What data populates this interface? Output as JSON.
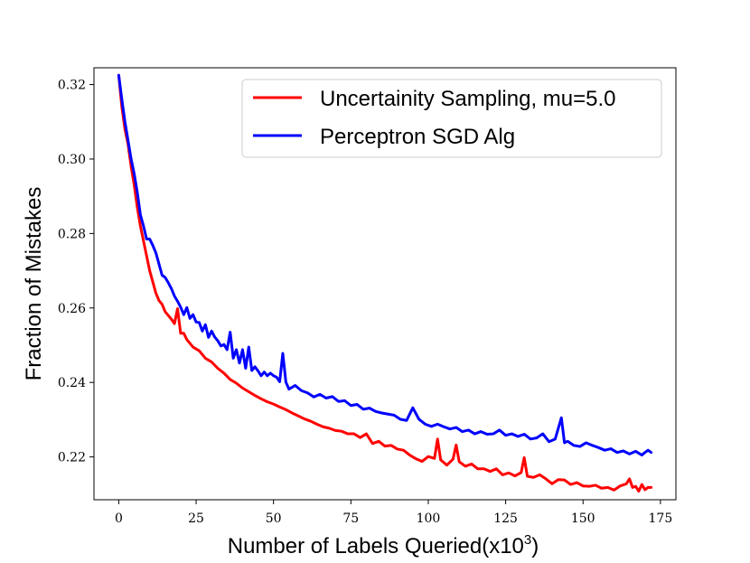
{
  "chart_data": {
    "type": "line",
    "title": "",
    "xlabel_main": "Number of Labels Queried(x10",
    "xlabel_exp": "3",
    "xlabel_close": ")",
    "ylabel": "Fraction of Mistakes",
    "xlim": [
      -8,
      180
    ],
    "ylim": [
      0.2085,
      0.3245
    ],
    "x_ticks": [
      0,
      25,
      50,
      75,
      100,
      125,
      150,
      175
    ],
    "x_tick_labels": [
      "0",
      "25",
      "50",
      "75",
      "100",
      "125",
      "150",
      "175"
    ],
    "y_ticks": [
      0.22,
      0.24,
      0.26,
      0.28,
      0.3,
      0.32
    ],
    "y_tick_labels": [
      "0.22",
      "0.24",
      "0.26",
      "0.28",
      "0.30",
      "0.32"
    ],
    "grid": false,
    "legend_position": "top-right",
    "series": [
      {
        "name": "Uncertainity Sampling, mu=5.0",
        "color": "#ff0000",
        "x": [
          0,
          1,
          2,
          3,
          4,
          5,
          6,
          7,
          8,
          9,
          10,
          11,
          12,
          13,
          14,
          15,
          16,
          17,
          18,
          19,
          20,
          21,
          22,
          24,
          26,
          28,
          30,
          32,
          34,
          36,
          38,
          40,
          42,
          44,
          46,
          48,
          50,
          52,
          54,
          56,
          58,
          60,
          62,
          64,
          66,
          68,
          70,
          72,
          74,
          76,
          78,
          80,
          82,
          84,
          86,
          88,
          90,
          92,
          94,
          96,
          98,
          100,
          102,
          103,
          104,
          106,
          108,
          109,
          110,
          112,
          114,
          116,
          118,
          120,
          122,
          124,
          126,
          128,
          130,
          131,
          132,
          134,
          136,
          138,
          140,
          142,
          144,
          146,
          148,
          150,
          152,
          154,
          156,
          158,
          160,
          162,
          164,
          165,
          166,
          167,
          168,
          169,
          170,
          171,
          172
        ],
        "y": [
          0.3225,
          0.314,
          0.308,
          0.304,
          0.298,
          0.293,
          0.287,
          0.282,
          0.278,
          0.274,
          0.27,
          0.267,
          0.264,
          0.262,
          0.261,
          0.259,
          0.258,
          0.257,
          0.2558,
          0.2598,
          0.2532,
          0.2532,
          0.2515,
          0.2495,
          0.2485,
          0.2465,
          0.2455,
          0.2438,
          0.2425,
          0.2408,
          0.2398,
          0.2385,
          0.2375,
          0.2365,
          0.2356,
          0.2348,
          0.2342,
          0.2334,
          0.2327,
          0.2318,
          0.231,
          0.2302,
          0.2296,
          0.2288,
          0.2281,
          0.2277,
          0.2271,
          0.2269,
          0.2262,
          0.2262,
          0.2252,
          0.2262,
          0.2236,
          0.2242,
          0.2229,
          0.2231,
          0.2221,
          0.2218,
          0.2205,
          0.2195,
          0.2188,
          0.2201,
          0.2196,
          0.2248,
          0.2192,
          0.2178,
          0.2194,
          0.2232,
          0.2187,
          0.2175,
          0.2181,
          0.2168,
          0.2168,
          0.2161,
          0.2168,
          0.2152,
          0.2157,
          0.2149,
          0.2158,
          0.2198,
          0.2148,
          0.2145,
          0.2152,
          0.2141,
          0.2128,
          0.2139,
          0.2138,
          0.2126,
          0.2131,
          0.2122,
          0.2121,
          0.2124,
          0.2116,
          0.2118,
          0.2111,
          0.2122,
          0.2128,
          0.2141,
          0.2118,
          0.2121,
          0.2108,
          0.2126,
          0.2112,
          0.2118,
          0.2118
        ]
      },
      {
        "name": "Perceptron SGD Alg",
        "color": "#0000ff",
        "x": [
          0,
          1,
          2,
          3,
          4,
          5,
          6,
          7,
          8,
          9,
          10,
          11,
          12,
          13,
          14,
          15,
          16,
          17,
          18,
          19,
          20,
          21,
          22,
          23,
          24,
          25,
          26,
          27,
          28,
          29,
          30,
          31,
          32,
          33,
          34,
          35,
          36,
          37,
          38,
          39,
          40,
          41,
          42,
          43,
          44,
          45,
          46,
          47,
          48,
          49,
          50,
          51,
          52,
          53,
          54,
          55,
          57,
          59,
          61,
          63,
          65,
          67,
          69,
          71,
          73,
          75,
          77,
          79,
          81,
          83,
          85,
          87,
          89,
          91,
          93,
          95,
          97,
          99,
          101,
          103,
          105,
          107,
          109,
          111,
          113,
          115,
          117,
          119,
          121,
          123,
          125,
          127,
          129,
          131,
          133,
          135,
          137,
          139,
          141,
          143,
          144,
          145,
          147,
          149,
          151,
          153,
          155,
          157,
          159,
          161,
          163,
          165,
          167,
          169,
          170,
          171,
          172
        ],
        "y": [
          0.3225,
          0.316,
          0.31,
          0.305,
          0.3,
          0.296,
          0.291,
          0.285,
          0.282,
          0.2785,
          0.2785,
          0.2768,
          0.2748,
          0.2718,
          0.2688,
          0.2682,
          0.2668,
          0.2652,
          0.2632,
          0.2618,
          0.2602,
          0.2582,
          0.2601,
          0.2572,
          0.2582,
          0.2562,
          0.2561,
          0.2538,
          0.2555,
          0.2521,
          0.2538,
          0.2522,
          0.2512,
          0.2498,
          0.2502,
          0.2488,
          0.2535,
          0.2465,
          0.2488,
          0.2452,
          0.2488,
          0.2438,
          0.2495,
          0.2432,
          0.2442,
          0.2431,
          0.2418,
          0.2428,
          0.2418,
          0.2425,
          0.2418,
          0.2414,
          0.2402,
          0.2478,
          0.2401,
          0.2382,
          0.2392,
          0.2378,
          0.2372,
          0.2361,
          0.2368,
          0.2358,
          0.2362,
          0.2349,
          0.2351,
          0.2338,
          0.2341,
          0.2328,
          0.2331,
          0.2322,
          0.2318,
          0.2315,
          0.2312,
          0.2301,
          0.2298,
          0.2332,
          0.2301,
          0.2288,
          0.2282,
          0.2288,
          0.2281,
          0.2275,
          0.2279,
          0.2268,
          0.2272,
          0.2262,
          0.2268,
          0.2261,
          0.2262,
          0.2272,
          0.2258,
          0.2262,
          0.2255,
          0.2261,
          0.2248,
          0.2251,
          0.2262,
          0.2241,
          0.2248,
          0.2305,
          0.2238,
          0.2242,
          0.2231,
          0.2228,
          0.2238,
          0.2231,
          0.2225,
          0.2218,
          0.2222,
          0.2212,
          0.2216,
          0.2208,
          0.2215,
          0.2205,
          0.2212,
          0.2218,
          0.2212
        ]
      }
    ]
  }
}
